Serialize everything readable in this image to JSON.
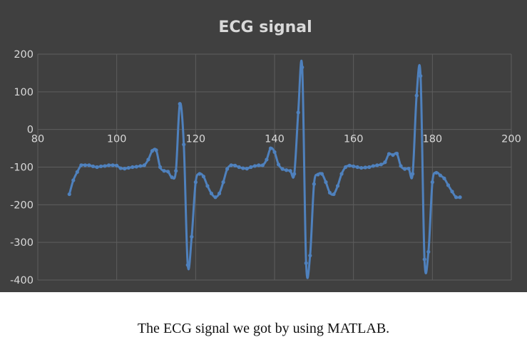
{
  "chart_data": {
    "type": "line",
    "title": "ECG signal",
    "xlim": [
      80,
      200
    ],
    "ylim": [
      -400,
      200
    ],
    "x_ticks": [
      80,
      100,
      120,
      140,
      160,
      180,
      200
    ],
    "y_ticks": [
      200,
      100,
      0,
      -100,
      -200,
      -300,
      -400
    ],
    "x_tick_labels": [
      "80",
      "100",
      "120",
      "140",
      "160",
      "180",
      "200"
    ],
    "y_tick_labels": [
      "200",
      "100",
      "0",
      "-100",
      "-200",
      "-300",
      "-400"
    ],
    "grid": true,
    "series": [
      {
        "color": "#4f81bd",
        "markers": true,
        "x": [
          88,
          89,
          90,
          91,
          92,
          93,
          94,
          95,
          96,
          97,
          98,
          99,
          100,
          101,
          102,
          103,
          104,
          105,
          106,
          107,
          108,
          109,
          110,
          111,
          112,
          113,
          114,
          115,
          116,
          117,
          118,
          119,
          120,
          121,
          122,
          123,
          124,
          125,
          126,
          127,
          128,
          129,
          130,
          131,
          132,
          133,
          134,
          135,
          136,
          137,
          138,
          139,
          140,
          141,
          142,
          143,
          144,
          145,
          146,
          147,
          148,
          149,
          150,
          151,
          152,
          153,
          154,
          155,
          156,
          157,
          158,
          159,
          160,
          161,
          162,
          163,
          164,
          165,
          166,
          167,
          168,
          169,
          170,
          171,
          172,
          173,
          174,
          175,
          176,
          177,
          178,
          179,
          180,
          181,
          182,
          183,
          184,
          185,
          186,
          187
        ],
        "y": [
          -172,
          -135,
          -113,
          -95,
          -95,
          -95,
          -98,
          -100,
          -98,
          -97,
          -95,
          -95,
          -96,
          -103,
          -104,
          -102,
          -100,
          -99,
          -97,
          -95,
          -80,
          -57,
          -55,
          -100,
          -110,
          -112,
          -127,
          -110,
          68,
          -40,
          -360,
          -285,
          -140,
          -118,
          -125,
          -150,
          -170,
          -180,
          -170,
          -140,
          -105,
          -95,
          -96,
          -100,
          -103,
          -104,
          -100,
          -97,
          -95,
          -95,
          -80,
          -50,
          -60,
          -93,
          -105,
          -108,
          -110,
          -118,
          45,
          165,
          -355,
          -335,
          -145,
          -120,
          -118,
          -140,
          -168,
          -172,
          -150,
          -118,
          -100,
          -96,
          -98,
          -100,
          -102,
          -101,
          -100,
          -97,
          -95,
          -93,
          -87,
          -65,
          -68,
          -64,
          -97,
          -105,
          -104,
          -118,
          90,
          142,
          -345,
          -325,
          -140,
          -115,
          -122,
          -130,
          -148,
          -165,
          -180,
          -180
        ]
      }
    ]
  },
  "caption": "The ECG signal we got by using MATLAB."
}
